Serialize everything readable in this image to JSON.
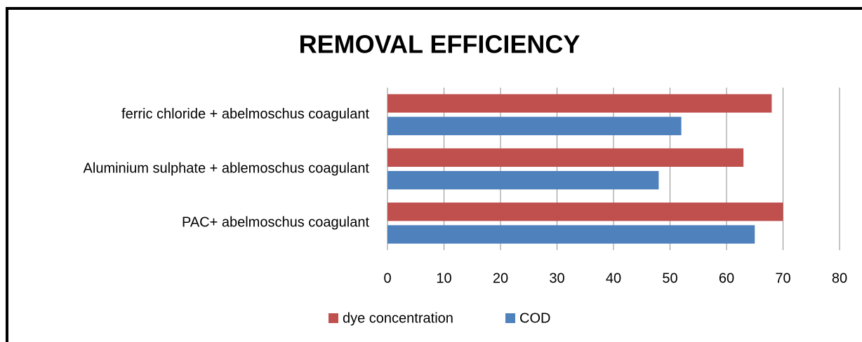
{
  "chart_data": {
    "type": "bar",
    "orientation": "horizontal",
    "title": "REMOVAL EFFICIENCY",
    "categories": [
      "ferric chloride + abelmoschus coagulant",
      "Aluminium sulphate + ablemoschus coagulant",
      "PAC+ abelmoschus coagulant"
    ],
    "series": [
      {
        "name": "dye concentration",
        "color": "#c0504d",
        "values": [
          68,
          63,
          70
        ]
      },
      {
        "name": "COD",
        "color": "#4f81bd",
        "values": [
          52,
          48,
          65
        ]
      }
    ],
    "xlim": [
      0,
      80
    ],
    "xticks": [
      0,
      10,
      20,
      30,
      40,
      50,
      60,
      70,
      80
    ],
    "grid": true,
    "legend": "bottom"
  }
}
